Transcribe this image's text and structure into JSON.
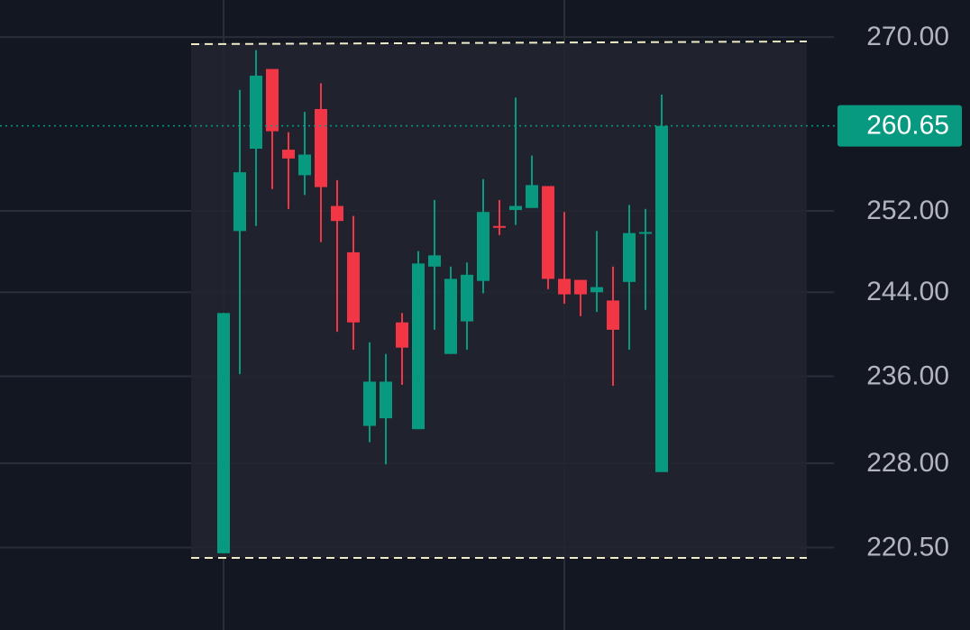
{
  "chart_data": {
    "type": "candlestick",
    "log_scale": true,
    "grid": true,
    "ylim": [
      274.0,
      213.4
    ],
    "yticks": [
      {
        "value": 270,
        "label": "270.00"
      },
      {
        "value": 252,
        "label": "252.00"
      },
      {
        "value": 244,
        "label": "244.00"
      },
      {
        "value": 236,
        "label": "236.00"
      },
      {
        "value": 228,
        "label": "228.00"
      },
      {
        "value": 220.5,
        "label": "220.50"
      }
    ],
    "up_color": "#089981",
    "down_color": "#f23645",
    "open": [
      220.0,
      250.0,
      258.3,
      266.6,
      258.2,
      255.6,
      262.4,
      252.5,
      247.9,
      231.4,
      232.1,
      241.1,
      231.1,
      246.5,
      238.1,
      241.2,
      245.1,
      250.5,
      252.1,
      252.3,
      254.5,
      245.3,
      245.2,
      244.0,
      243.2,
      245.0,
      249.8,
      227.2
    ],
    "high": [
      242.0,
      264.4,
      268.6,
      266.6,
      260.0,
      262.1,
      265.1,
      255.1,
      251.5,
      239.2,
      238.1,
      242.0,
      248.0,
      253.1,
      246.5,
      246.9,
      255.2,
      253.1,
      263.6,
      257.6,
      254.5,
      251.9,
      245.2,
      250.0,
      246.5,
      252.6,
      252.2,
      263.9
    ],
    "low": [
      220.0,
      236.2,
      250.5,
      254.2,
      252.2,
      253.6,
      248.9,
      240.2,
      238.5,
      229.9,
      227.9,
      235.2,
      231.1,
      240.4,
      238.1,
      238.5,
      243.9,
      249.6,
      250.6,
      252.3,
      244.3,
      242.9,
      241.7,
      242.1,
      235.1,
      238.5,
      242.3,
      227.2
    ],
    "close": [
      242.0,
      255.9,
      265.9,
      260.1,
      257.3,
      257.7,
      254.4,
      251.0,
      241.1,
      235.5,
      235.5,
      238.7,
      246.8,
      247.6,
      245.3,
      245.7,
      251.9,
      250.4,
      252.5,
      254.6,
      245.3,
      243.8,
      243.8,
      244.5,
      240.4,
      249.8,
      249.9,
      260.65
    ],
    "last_price": 260.65,
    "last_price_color": "#089981"
  }
}
